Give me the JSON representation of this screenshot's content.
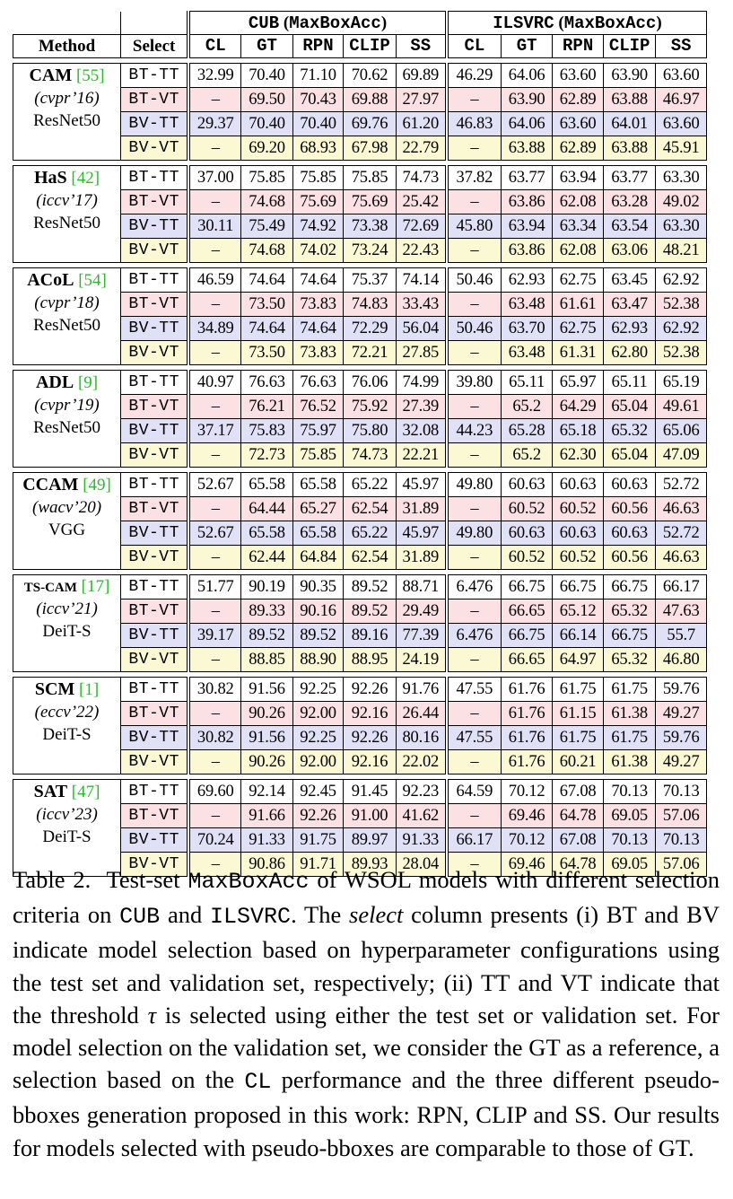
{
  "header": {
    "method_label": "Method",
    "select_label": "Select",
    "groups": [
      {
        "dataset": "CUB",
        "metric": "MaxBoxAcc"
      },
      {
        "dataset": "ILSVRC",
        "metric": "MaxBoxAcc"
      }
    ],
    "columns": [
      "CL",
      "GT",
      "RPN",
      "CLIP",
      "SS"
    ]
  },
  "methods": [
    {
      "name": "CAM",
      "ref": "[55]",
      "venue": "(cvpr’16)",
      "backbone": "ResNet50",
      "rows": [
        {
          "sel": "BT-TT",
          "cub": [
            "32.99",
            "70.40",
            "71.10",
            "70.62",
            "69.89"
          ],
          "ils": [
            "46.29",
            "64.06",
            "63.60",
            "63.90",
            "63.60"
          ]
        },
        {
          "sel": "BT-VT",
          "cub": [
            "–",
            "69.50",
            "70.43",
            "69.88",
            "27.97"
          ],
          "ils": [
            "–",
            "63.90",
            "62.89",
            "63.88",
            "46.97"
          ]
        },
        {
          "sel": "BV-TT",
          "cub": [
            "29.37",
            "70.40",
            "70.40",
            "69.76",
            "61.20"
          ],
          "ils": [
            "46.83",
            "64.06",
            "63.60",
            "64.01",
            "63.60"
          ]
        },
        {
          "sel": "BV-VT",
          "cub": [
            "–",
            "69.20",
            "68.93",
            "67.98",
            "22.79"
          ],
          "ils": [
            "–",
            "63.88",
            "62.89",
            "63.88",
            "45.91"
          ]
        }
      ]
    },
    {
      "name": "HaS",
      "ref": "[42]",
      "venue": "(iccv’17)",
      "backbone": "ResNet50",
      "rows": [
        {
          "sel": "BT-TT",
          "cub": [
            "37.00",
            "75.85",
            "75.85",
            "75.85",
            "74.73"
          ],
          "ils": [
            "37.82",
            "63.77",
            "63.94",
            "63.77",
            "63.30"
          ]
        },
        {
          "sel": "BT-VT",
          "cub": [
            "–",
            "74.68",
            "75.69",
            "75.69",
            "25.42"
          ],
          "ils": [
            "–",
            "63.86",
            "62.08",
            "63.28",
            "49.02"
          ]
        },
        {
          "sel": "BV-TT",
          "cub": [
            "30.11",
            "75.49",
            "74.92",
            "73.38",
            "72.69"
          ],
          "ils": [
            "45.80",
            "63.94",
            "63.34",
            "63.54",
            "63.30"
          ]
        },
        {
          "sel": "BV-VT",
          "cub": [
            "–",
            "74.68",
            "74.02",
            "73.24",
            "22.43"
          ],
          "ils": [
            "–",
            "63.86",
            "62.08",
            "63.06",
            "48.21"
          ]
        }
      ]
    },
    {
      "name": "ACoL",
      "ref": "[54]",
      "venue": "(cvpr’18)",
      "backbone": "ResNet50",
      "rows": [
        {
          "sel": "BT-TT",
          "cub": [
            "46.59",
            "74.64",
            "74.64",
            "75.37",
            "74.14"
          ],
          "ils": [
            "50.46",
            "62.93",
            "62.75",
            "63.45",
            "62.92"
          ]
        },
        {
          "sel": "BT-VT",
          "cub": [
            "–",
            "73.50",
            "73.83",
            "74.83",
            "33.43"
          ],
          "ils": [
            "–",
            "63.48",
            "61.61",
            "63.47",
            "52.38"
          ]
        },
        {
          "sel": "BV-TT",
          "cub": [
            "34.89",
            "74.64",
            "74.64",
            "72.29",
            "56.04"
          ],
          "ils": [
            "50.46",
            "63.70",
            "62.75",
            "62.93",
            "62.92"
          ]
        },
        {
          "sel": "BV-VT",
          "cub": [
            "–",
            "73.50",
            "73.83",
            "72.21",
            "27.85"
          ],
          "ils": [
            "–",
            "63.48",
            "61.31",
            "62.80",
            "52.38"
          ]
        }
      ]
    },
    {
      "name": "ADL",
      "ref": "[9]",
      "venue": "(cvpr’19)",
      "backbone": "ResNet50",
      "rows": [
        {
          "sel": "BT-TT",
          "cub": [
            "40.97",
            "76.63",
            "76.63",
            "76.06",
            "74.99"
          ],
          "ils": [
            "39.80",
            "65.11",
            "65.97",
            "65.11",
            "65.19"
          ]
        },
        {
          "sel": "BT-VT",
          "cub": [
            "–",
            "76.21",
            "76.52",
            "75.92",
            "27.39"
          ],
          "ils": [
            "–",
            "65.2",
            "64.29",
            "65.04",
            "49.61"
          ]
        },
        {
          "sel": "BV-TT",
          "cub": [
            "37.17",
            "75.83",
            "75.97",
            "75.80",
            "32.08"
          ],
          "ils": [
            "44.23",
            "65.28",
            "65.18",
            "65.32",
            "65.06"
          ]
        },
        {
          "sel": "BV-VT",
          "cub": [
            "–",
            "72.73",
            "75.85",
            "74.73",
            "22.21"
          ],
          "ils": [
            "–",
            "65.2",
            "62.30",
            "65.04",
            "47.09"
          ]
        }
      ]
    },
    {
      "name": "CCAM",
      "ref": "[49]",
      "venue": "(wacv’20)",
      "backbone": "VGG",
      "rows": [
        {
          "sel": "BT-TT",
          "cub": [
            "52.67",
            "65.58",
            "65.58",
            "65.22",
            "45.97"
          ],
          "ils": [
            "49.80",
            "60.63",
            "60.63",
            "60.63",
            "52.72"
          ]
        },
        {
          "sel": "BT-VT",
          "cub": [
            "–",
            "64.44",
            "65.27",
            "62.54",
            "31.89"
          ],
          "ils": [
            "–",
            "60.52",
            "60.52",
            "60.56",
            "46.63"
          ]
        },
        {
          "sel": "BV-TT",
          "cub": [
            "52.67",
            "65.58",
            "65.58",
            "65.22",
            "45.97"
          ],
          "ils": [
            "49.80",
            "60.63",
            "60.63",
            "60.63",
            "52.72"
          ]
        },
        {
          "sel": "BV-VT",
          "cub": [
            "–",
            "62.44",
            "64.84",
            "62.54",
            "31.89"
          ],
          "ils": [
            "–",
            "60.52",
            "60.52",
            "60.56",
            "46.63"
          ]
        }
      ]
    },
    {
      "name": "TS-CAM",
      "ref": "[17]",
      "venue": "(iccv’21)",
      "backbone": "DeiT-S",
      "rows": [
        {
          "sel": "BT-TT",
          "cub": [
            "51.77",
            "90.19",
            "90.35",
            "89.52",
            "88.71"
          ],
          "ils": [
            "6.476",
            "66.75",
            "66.75",
            "66.75",
            "66.17"
          ]
        },
        {
          "sel": "BT-VT",
          "cub": [
            "–",
            "89.33",
            "90.16",
            "89.52",
            "29.49"
          ],
          "ils": [
            "–",
            "66.65",
            "65.12",
            "65.32",
            "47.63"
          ]
        },
        {
          "sel": "BV-TT",
          "cub": [
            "39.17",
            "89.52",
            "89.52",
            "89.16",
            "77.39"
          ],
          "ils": [
            "6.476",
            "66.75",
            "66.14",
            "66.75",
            "55.7"
          ]
        },
        {
          "sel": "BV-VT",
          "cub": [
            "–",
            "88.85",
            "88.90",
            "88.95",
            "24.19"
          ],
          "ils": [
            "–",
            "66.65",
            "64.97",
            "65.32",
            "46.80"
          ]
        }
      ]
    },
    {
      "name": "SCM",
      "ref": "[1]",
      "venue": "(eccv’22)",
      "backbone": "DeiT-S",
      "rows": [
        {
          "sel": "BT-TT",
          "cub": [
            "30.82",
            "91.56",
            "92.25",
            "92.26",
            "91.76"
          ],
          "ils": [
            "47.55",
            "61.76",
            "61.75",
            "61.75",
            "59.76"
          ]
        },
        {
          "sel": "BT-VT",
          "cub": [
            "–",
            "90.26",
            "92.00",
            "92.16",
            "26.44"
          ],
          "ils": [
            "–",
            "61.76",
            "61.15",
            "61.38",
            "49.27"
          ]
        },
        {
          "sel": "BV-TT",
          "cub": [
            "30.82",
            "91.56",
            "92.25",
            "92.26",
            "80.16"
          ],
          "ils": [
            "47.55",
            "61.76",
            "61.75",
            "61.75",
            "59.76"
          ]
        },
        {
          "sel": "BV-VT",
          "cub": [
            "–",
            "90.26",
            "92.00",
            "92.16",
            "22.02"
          ],
          "ils": [
            "–",
            "61.76",
            "60.21",
            "61.38",
            "49.27"
          ]
        }
      ]
    },
    {
      "name": "SAT",
      "ref": "[47]",
      "venue": "(iccv’23)",
      "backbone": "DeiT-S",
      "rows": [
        {
          "sel": "BT-TT",
          "cub": [
            "69.60",
            "92.14",
            "92.45",
            "91.45",
            "92.23"
          ],
          "ils": [
            "64.59",
            "70.12",
            "67.08",
            "70.13",
            "70.13"
          ]
        },
        {
          "sel": "BT-VT",
          "cub": [
            "–",
            "91.66",
            "92.26",
            "91.00",
            "41.62"
          ],
          "ils": [
            "–",
            "69.46",
            "64.78",
            "69.05",
            "57.06"
          ]
        },
        {
          "sel": "BV-TT",
          "cub": [
            "70.24",
            "91.33",
            "91.75",
            "89.97",
            "91.33"
          ],
          "ils": [
            "66.17",
            "70.12",
            "67.08",
            "70.13",
            "70.13"
          ]
        },
        {
          "sel": "BV-VT",
          "cub": [
            "–",
            "90.86",
            "91.71",
            "89.93",
            "28.04"
          ],
          "ils": [
            "–",
            "69.46",
            "64.78",
            "69.05",
            "57.06"
          ]
        }
      ]
    }
  ],
  "caption": {
    "label": "Table 2.",
    "t1": "Test-set ",
    "m1": "MaxBoxAcc",
    "t2": " of WSOL models with different selection criteria on ",
    "m2": "CUB",
    "t3": " and ",
    "m3": "ILSVRC",
    "t4": ". The ",
    "em1": "select",
    "t5": " column presents (i) BT and BV indicate model selection based on hyperparameter configurations using the test set and validation set, respectively; (ii) TT and VT indicate that the threshold ",
    "tau": "τ",
    "t6": " is selected using either the test set or validation set. For model selection on the validation set, we consider the GT as a reference, a selection based on the ",
    "m4": "CL",
    "t7": " performance and the three different pseudo-bboxes generation proposed in this work: RPN, CLIP and SS. Our results for models selected with pseudo-bboxes are comparable to those of GT."
  }
}
